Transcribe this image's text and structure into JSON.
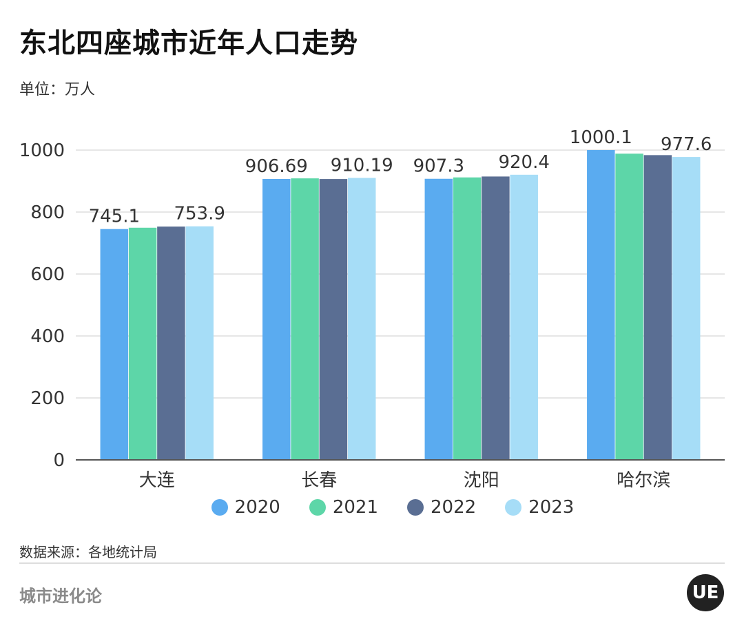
{
  "header": {
    "title": "东北四座城市近年人口走势",
    "unit": "单位：万人"
  },
  "footer": {
    "source": "数据来源：各地统计局",
    "brand": "城市进化论",
    "logo_text": "UE"
  },
  "colors": {
    "2020": "#5aabf0",
    "2021": "#5dd6a8",
    "2022": "#5a6e93",
    "2023": "#a6ddf7",
    "grid": "#dddddd",
    "axis": "#555555"
  },
  "chart_data": {
    "type": "bar",
    "categories": [
      "大连",
      "长春",
      "沈阳",
      "哈尔滨"
    ],
    "series": [
      {
        "name": "2020",
        "values": [
          745.1,
          906.69,
          907.3,
          1000.1
        ]
      },
      {
        "name": "2021",
        "values": [
          749.4,
          908.7,
          911.8,
          988.5
        ]
      },
      {
        "name": "2022",
        "values": [
          753.1,
          906.5,
          914.7,
          983.7
        ]
      },
      {
        "name": "2023",
        "values": [
          753.9,
          910.19,
          920.4,
          977.6
        ]
      }
    ],
    "data_labels": [
      {
        "category_index": 0,
        "series_index": 0,
        "text": "745.1"
      },
      {
        "category_index": 0,
        "series_index": 3,
        "text": "753.9"
      },
      {
        "category_index": 1,
        "series_index": 0,
        "text": "906.69"
      },
      {
        "category_index": 1,
        "series_index": 3,
        "text": "910.19"
      },
      {
        "category_index": 2,
        "series_index": 0,
        "text": "907.3"
      },
      {
        "category_index": 2,
        "series_index": 3,
        "text": "920.4"
      },
      {
        "category_index": 3,
        "series_index": 0,
        "text": "1000.1"
      },
      {
        "category_index": 3,
        "series_index": 3,
        "text": "977.6"
      }
    ],
    "ylim": [
      0,
      1000
    ],
    "yticks": [
      0,
      200,
      400,
      600,
      800,
      1000
    ],
    "ytick_labels": [
      "0",
      "200",
      "400",
      "600",
      "800",
      "1000"
    ],
    "grid": true,
    "legend": "bottom"
  }
}
